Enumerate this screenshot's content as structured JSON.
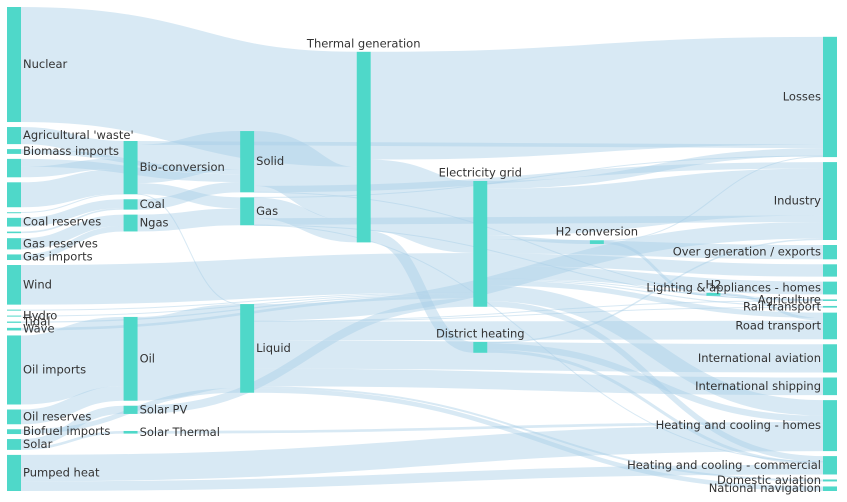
{
  "chart_data": {
    "type": "sankey",
    "node_color": "#4fd8c9",
    "link_color": "#a9cfe6",
    "nodes": [
      {
        "name": "Agricultural 'waste'"
      },
      {
        "name": "Biofuel imports"
      },
      {
        "name": "Biomass imports"
      },
      {
        "name": null
      },
      {
        "name": "Coal reserves"
      },
      {
        "name": "Gas imports"
      },
      {
        "name": "Gas reserves"
      },
      {
        "name": null
      },
      {
        "name": "Hydro"
      },
      {
        "name": null
      },
      {
        "name": "Nuclear"
      },
      {
        "name": "Oil imports"
      },
      {
        "name": "Oil reserves"
      },
      {
        "name": null
      },
      {
        "name": "Pumped heat"
      },
      {
        "name": "Solar"
      },
      {
        "name": "Tidal"
      },
      {
        "name": null
      },
      {
        "name": "Wave"
      },
      {
        "name": "Wind"
      },
      {
        "name": "Solar PV"
      },
      {
        "name": "Solar Thermal"
      },
      {
        "name": "Bio-conversion"
      },
      {
        "name": "Coal"
      },
      {
        "name": "Ngas"
      },
      {
        "name": "Oil"
      },
      {
        "name": "Liquid"
      },
      {
        "name": "Solid"
      },
      {
        "name": "Gas"
      },
      {
        "name": "Thermal generation"
      },
      {
        "name": "District heating"
      },
      {
        "name": "Electricity grid"
      },
      {
        "name": "H2 conversion"
      },
      {
        "name": "H2"
      },
      {
        "name": "Losses"
      },
      {
        "name": "Industry"
      },
      {
        "name": "Heating and cooling - commercial"
      },
      {
        "name": "Heating and cooling - homes"
      },
      {
        "name": "Over generation / exports"
      },
      {
        "name": "Road transport"
      },
      {
        "name": "Agriculture"
      },
      {
        "name": "Rail transport"
      },
      {
        "name": null
      },
      {
        "name": "Lighting & appliances - homes"
      },
      {
        "name": "International shipping"
      },
      {
        "name": "Domestic aviation"
      },
      {
        "name": "International aviation"
      },
      {
        "name": "National navigation"
      }
    ],
    "links": [
      {
        "source": 0,
        "target": 22,
        "value": 124.729
      },
      {
        "source": 22,
        "target": 26,
        "value": 0.597
      },
      {
        "source": 22,
        "target": 34,
        "value": 26.862
      },
      {
        "source": 22,
        "target": 27,
        "value": 280.322
      },
      {
        "source": 22,
        "target": 28,
        "value": 81.144
      },
      {
        "source": 1,
        "target": 26,
        "value": 35
      },
      {
        "source": 2,
        "target": 27,
        "value": 35
      },
      {
        "source": 3,
        "target": 23,
        "value": 11.606
      },
      {
        "source": 4,
        "target": 23,
        "value": 63.965
      },
      {
        "source": 23,
        "target": 27,
        "value": 75.571
      },
      {
        "source": 30,
        "target": 35,
        "value": 10.639
      },
      {
        "source": 30,
        "target": 36,
        "value": 22.505
      },
      {
        "source": 30,
        "target": 37,
        "value": 46.184
      },
      {
        "source": 31,
        "target": 38,
        "value": 104.453
      },
      {
        "source": 31,
        "target": 37,
        "value": 113.726
      },
      {
        "source": 31,
        "target": 32,
        "value": 27.14
      },
      {
        "source": 31,
        "target": 35,
        "value": 342.165
      },
      {
        "source": 31,
        "target": 39,
        "value": 37.797
      },
      {
        "source": 31,
        "target": 40,
        "value": 4.412
      },
      {
        "source": 31,
        "target": 36,
        "value": 40.858
      },
      {
        "source": 31,
        "target": 34,
        "value": 56.691
      },
      {
        "source": 31,
        "target": 41,
        "value": 7.863
      },
      {
        "source": 31,
        "target": 42,
        "value": 90.008
      },
      {
        "source": 31,
        "target": 43,
        "value": 93.494
      },
      {
        "source": 5,
        "target": 24,
        "value": 40.719
      },
      {
        "source": 6,
        "target": 24,
        "value": 82.233
      },
      {
        "source": 28,
        "target": 36,
        "value": 0.129
      },
      {
        "source": 28,
        "target": 34,
        "value": 1.401
      },
      {
        "source": 28,
        "target": 29,
        "value": 151.891
      },
      {
        "source": 28,
        "target": 40,
        "value": 2.096
      },
      {
        "source": 28,
        "target": 35,
        "value": 48.58
      },
      {
        "source": 7,
        "target": 31,
        "value": 7.013
      },
      {
        "source": 32,
        "target": 33,
        "value": 20.897
      },
      {
        "source": 32,
        "target": 34,
        "value": 6.242
      },
      {
        "source": 33,
        "target": 39,
        "value": 20.897
      },
      {
        "source": 8,
        "target": 31,
        "value": 6.995
      },
      {
        "source": 26,
        "target": 35,
        "value": 121.066
      },
      {
        "source": 26,
        "target": 44,
        "value": 128.69
      },
      {
        "source": 26,
        "target": 39,
        "value": 135.835
      },
      {
        "source": 26,
        "target": 45,
        "value": 14.458
      },
      {
        "source": 26,
        "target": 46,
        "value": 206.267
      },
      {
        "source": 26,
        "target": 40,
        "value": 3.64
      },
      {
        "source": 26,
        "target": 47,
        "value": 33.218
      },
      {
        "source": 26,
        "target": 41,
        "value": 4.413
      },
      {
        "source": 9,
        "target": 22,
        "value": 4.375
      },
      {
        "source": 24,
        "target": 28,
        "value": 122.952
      },
      {
        "source": 10,
        "target": 29,
        "value": 839.978
      },
      {
        "source": 11,
        "target": 25,
        "value": 504.287
      },
      {
        "source": 12,
        "target": 25,
        "value": 107.703
      },
      {
        "source": 25,
        "target": 26,
        "value": 611.99
      },
      {
        "source": 13,
        "target": 27,
        "value": 56.587
      },
      {
        "source": 13,
        "target": 22,
        "value": 77.81
      },
      {
        "source": 14,
        "target": 37,
        "value": 193.026
      },
      {
        "source": 14,
        "target": 36,
        "value": 70.672
      },
      {
        "source": 20,
        "target": 31,
        "value": 59.901
      },
      {
        "source": 21,
        "target": 37,
        "value": 19.263
      },
      {
        "source": 15,
        "target": 21,
        "value": 19.263
      },
      {
        "source": 15,
        "target": 20,
        "value": 59.901
      },
      {
        "source": 27,
        "target": 40,
        "value": 0.882
      },
      {
        "source": 27,
        "target": 29,
        "value": 400.12
      },
      {
        "source": 27,
        "target": 35,
        "value": 46.477
      },
      {
        "source": 29,
        "target": 31,
        "value": 525.531
      },
      {
        "source": 29,
        "target": 34,
        "value": 787.129
      },
      {
        "source": 29,
        "target": 30,
        "value": 79.329
      },
      {
        "source": 16,
        "target": 31,
        "value": 9.452
      },
      {
        "source": 17,
        "target": 22,
        "value": 182.01
      },
      {
        "source": 18,
        "target": 31,
        "value": 19.013
      },
      {
        "source": 19,
        "target": 31,
        "value": 289.366
      }
    ]
  }
}
